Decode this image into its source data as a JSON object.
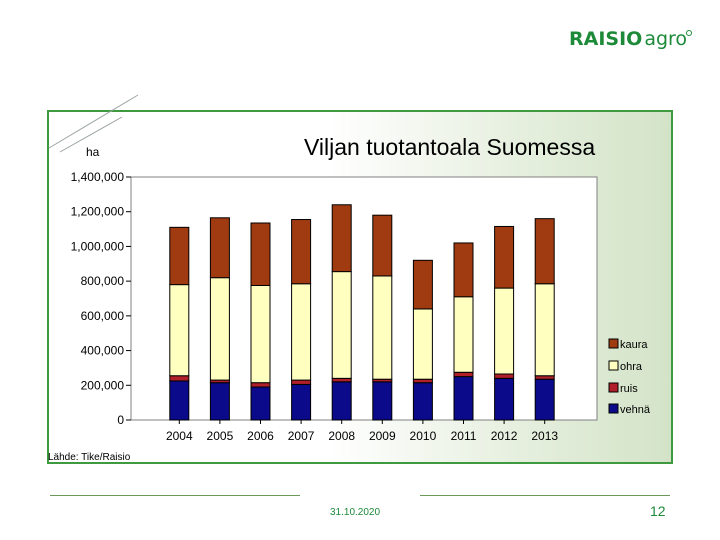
{
  "logo": {
    "brand": "RAISIO",
    "suffix": "agro"
  },
  "chart_data": {
    "type": "bar",
    "stacked": true,
    "title": "Viljan tuotantoala Suomessa",
    "ylabel": "ha",
    "categories": [
      "2004",
      "2005",
      "2006",
      "2007",
      "2008",
      "2009",
      "2010",
      "2011",
      "2012",
      "2013"
    ],
    "ylim": [
      0,
      1400000
    ],
    "yticks": [
      0,
      200000,
      400000,
      600000,
      800000,
      1000000,
      1200000,
      1400000
    ],
    "ytick_labels": [
      "0",
      "200,000",
      "400,000",
      "600,000",
      "800,000",
      "1,000,000",
      "1,200,000",
      "1,400,000"
    ],
    "series": [
      {
        "name": "vehnä",
        "color": "#0a0a8a",
        "values": [
          225000,
          215000,
          190000,
          205000,
          220000,
          220000,
          215000,
          250000,
          240000,
          235000
        ]
      },
      {
        "name": "ruis",
        "color": "#b0202a",
        "values": [
          30000,
          15000,
          25000,
          25000,
          20000,
          15000,
          20000,
          25000,
          25000,
          20000
        ]
      },
      {
        "name": "ohra",
        "color": "#ffffc0",
        "values": [
          525000,
          590000,
          560000,
          555000,
          615000,
          595000,
          405000,
          435000,
          495000,
          530000
        ]
      },
      {
        "name": "kaura",
        "color": "#a03a10",
        "values": [
          330000,
          345000,
          360000,
          370000,
          385000,
          350000,
          280000,
          310000,
          355000,
          375000
        ]
      }
    ],
    "legend_order": [
      "kaura",
      "ohra",
      "ruis",
      "vehnä"
    ],
    "legend_position": "right",
    "grid": false
  },
  "source_note": "Lähde: Tike/Raisio",
  "footer": {
    "date": "31.10.2020",
    "page": "12"
  }
}
